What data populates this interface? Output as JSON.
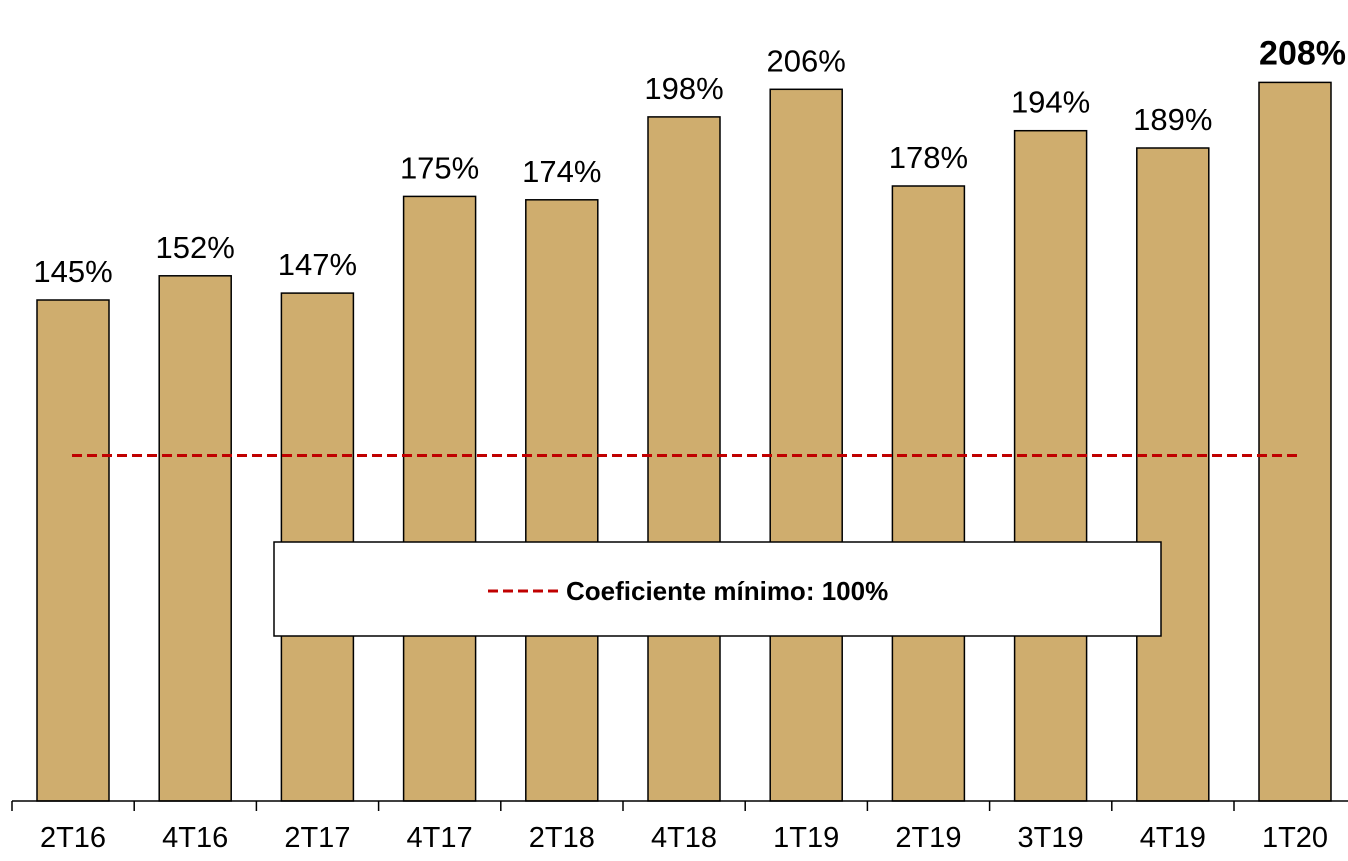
{
  "chart_data": {
    "type": "bar",
    "categories": [
      "2T16",
      "4T16",
      "2T17",
      "4T17",
      "2T18",
      "4T18",
      "1T19",
      "2T19",
      "3T19",
      "4T19",
      "1T20"
    ],
    "values": [
      145,
      152,
      147,
      175,
      174,
      198,
      206,
      178,
      194,
      189,
      208
    ],
    "data_labels": [
      "145%",
      "152%",
      "147%",
      "175%",
      "174%",
      "198%",
      "206%",
      "178%",
      "194%",
      "189%",
      "208%"
    ],
    "highlighted_label_index": 10,
    "reference_line": {
      "value": 100,
      "label": "Coeficiente mínimo: 100%",
      "style": "dashed"
    },
    "title": "",
    "xlabel": "",
    "ylabel": "",
    "ylim": [
      0,
      212
    ],
    "grid": false,
    "legend": {
      "placement": "center",
      "entries": [
        "Coeficiente mínimo: 100%"
      ]
    },
    "colors": {
      "bar_fill": "#cfad6e",
      "bar_stroke": "#000000",
      "reference_line": "#c00000",
      "text": "#000000",
      "axis": "#000000"
    }
  }
}
